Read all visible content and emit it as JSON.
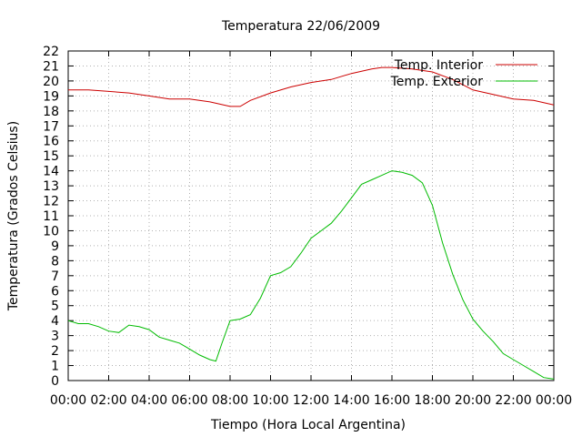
{
  "chart_data": {
    "type": "line",
    "title": "Temperatura 22/06/2009",
    "xlabel": "Tiempo (Hora Local Argentina)",
    "ylabel": "Temperatura (Grados Celsius)",
    "xlim": [
      0,
      24
    ],
    "ylim": [
      0,
      22
    ],
    "x_ticks": [
      {
        "value": 0,
        "label": "00:00"
      },
      {
        "value": 2,
        "label": "02:00"
      },
      {
        "value": 4,
        "label": "04:00"
      },
      {
        "value": 6,
        "label": "06:00"
      },
      {
        "value": 8,
        "label": "08:00"
      },
      {
        "value": 10,
        "label": "10:00"
      },
      {
        "value": 12,
        "label": "12:00"
      },
      {
        "value": 14,
        "label": "14:00"
      },
      {
        "value": 16,
        "label": "16:00"
      },
      {
        "value": 18,
        "label": "18:00"
      },
      {
        "value": 20,
        "label": "20:00"
      },
      {
        "value": 22,
        "label": "22:00"
      },
      {
        "value": 24,
        "label": "00:00"
      }
    ],
    "y_ticks": [
      0,
      1,
      2,
      3,
      4,
      5,
      6,
      7,
      8,
      9,
      10,
      11,
      12,
      13,
      14,
      15,
      16,
      17,
      18,
      19,
      20,
      21,
      22
    ],
    "grid": true,
    "legend_position": "top-right",
    "series": [
      {
        "name": "Temp. Interior",
        "color": "#cc0000",
        "x": [
          0,
          1,
          2,
          3,
          4,
          5,
          6,
          7,
          8,
          8.5,
          9,
          10,
          11,
          12,
          13,
          14,
          15,
          15.5,
          16,
          17,
          18,
          19,
          20,
          21,
          22,
          23,
          24
        ],
        "values": [
          19.4,
          19.4,
          19.3,
          19.2,
          19.0,
          18.8,
          18.8,
          18.6,
          18.3,
          18.3,
          18.7,
          19.2,
          19.6,
          19.9,
          20.1,
          20.5,
          20.8,
          20.9,
          20.9,
          20.8,
          20.6,
          20.1,
          19.4,
          19.1,
          18.8,
          18.7,
          18.4
        ]
      },
      {
        "name": "Temp. Exterior",
        "color": "#00bb00",
        "x": [
          0,
          0.5,
          1,
          1.5,
          2,
          2.5,
          3,
          3.5,
          4,
          4.5,
          5,
          5.5,
          6,
          6.5,
          7,
          7.3,
          7.6,
          8,
          8.5,
          9,
          9.5,
          10,
          10.5,
          11,
          11.5,
          12,
          12.5,
          13,
          13.5,
          14,
          14.5,
          15,
          15.5,
          16,
          16.5,
          17,
          17.5,
          18,
          18.5,
          19,
          19.5,
          20,
          20.5,
          21,
          21.5,
          22,
          22.5,
          23,
          23.5,
          24
        ],
        "values": [
          4.0,
          3.8,
          3.8,
          3.6,
          3.3,
          3.2,
          3.7,
          3.6,
          3.4,
          2.9,
          2.7,
          2.5,
          2.1,
          1.7,
          1.4,
          1.3,
          2.5,
          4.0,
          4.1,
          4.4,
          5.5,
          7.0,
          7.2,
          7.6,
          8.5,
          9.5,
          10.0,
          10.5,
          11.3,
          12.2,
          13.1,
          13.4,
          13.7,
          14.0,
          13.9,
          13.7,
          13.2,
          11.7,
          9.2,
          7.1,
          5.4,
          4.1,
          3.3,
          2.6,
          1.8,
          1.4,
          1.0,
          0.6,
          0.2,
          0.1
        ]
      }
    ]
  }
}
